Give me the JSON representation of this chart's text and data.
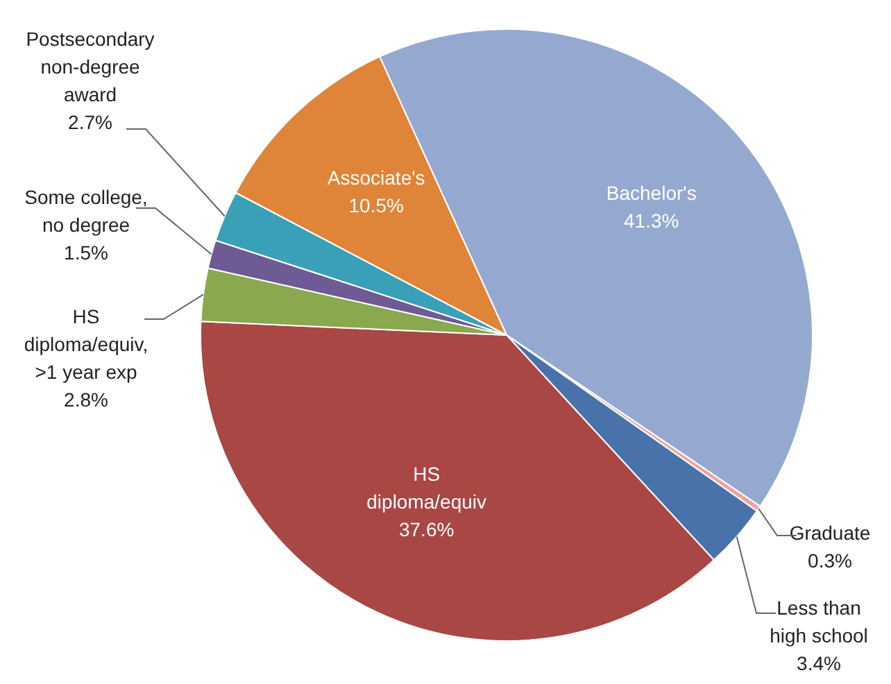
{
  "chart_data": {
    "type": "pie",
    "categories": [
      "Bachelor's",
      "Graduate",
      "Less than high school",
      "HS diploma/equiv",
      "HS diploma/equiv, >1 year exp",
      "Some college, no degree",
      "Postsecondary non-degree award",
      "Associate's"
    ],
    "values": [
      41.3,
      0.3,
      3.4,
      37.6,
      2.8,
      1.5,
      2.7,
      10.5
    ],
    "colors": [
      "#95a9d0",
      "#e8a6a0",
      "#4a72aa",
      "#a84744",
      "#8aa84e",
      "#6e5a94",
      "#3aa0b8",
      "#df8438"
    ],
    "value_labels": [
      "41.3%",
      "0.3%",
      "3.4%",
      "37.6%",
      "2.8%",
      "1.5%",
      "2.7%",
      "10.5%"
    ],
    "legend": false
  }
}
